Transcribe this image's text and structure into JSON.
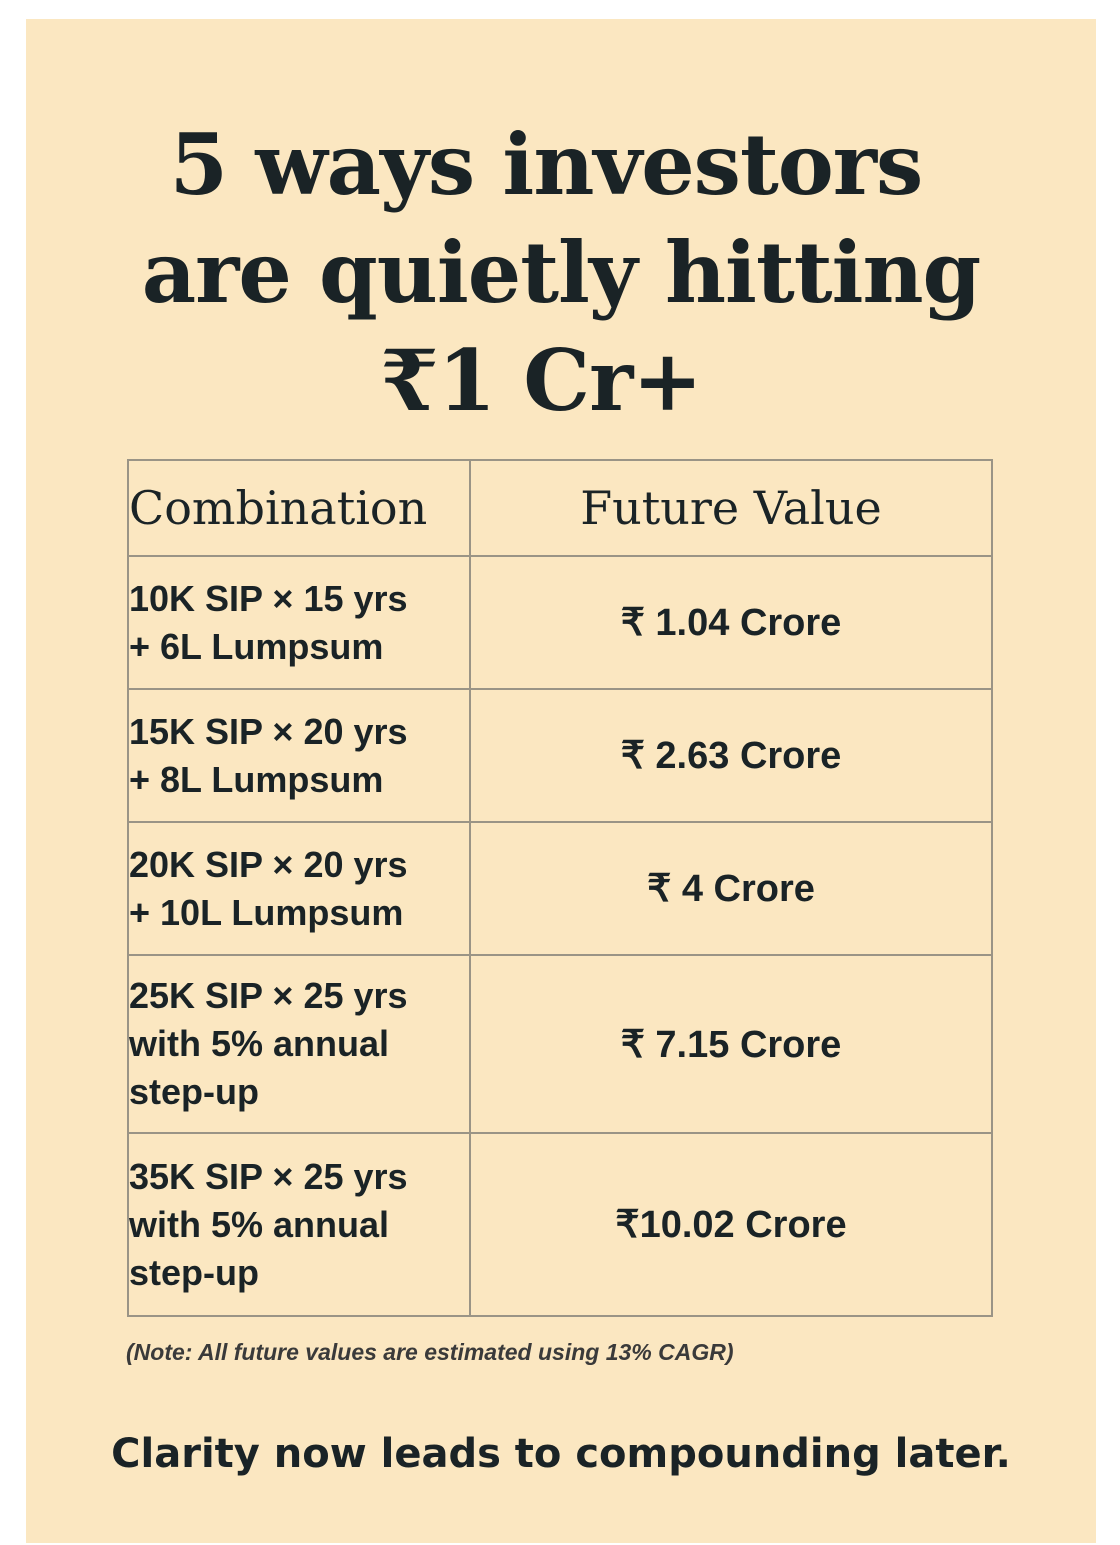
{
  "title": {
    "line1": "5 ways investors",
    "line2": "are quietly hitting",
    "line3": "₹1 Cr+"
  },
  "table": {
    "headers": [
      "Combination",
      "Future Value"
    ],
    "rows": [
      {
        "combination": [
          "10K SIP × 15 yrs",
          "+ 6L Lumpsum"
        ],
        "future_value": "₹ 1.04 Crore"
      },
      {
        "combination": [
          "15K SIP × 20 yrs",
          "+ 8L Lumpsum"
        ],
        "future_value": "₹ 2.63 Crore"
      },
      {
        "combination": [
          "20K SIP × 20 yrs",
          "+ 10L Lumpsum"
        ],
        "future_value": "₹ 4 Crore"
      },
      {
        "combination": [
          "25K SIP × 25 yrs",
          "with 5% annual",
          "step-up"
        ],
        "future_value": "₹ 7.15 Crore"
      },
      {
        "combination": [
          "35K SIP × 25 yrs",
          "with 5% annual",
          "step-up"
        ],
        "future_value": "₹10.02 Crore"
      }
    ]
  },
  "note": "(Note: All future values are estimated using 13% CAGR)",
  "tagline": "Clarity now leads to compounding later.",
  "colors": {
    "background": "#fbe7c1",
    "text": "#1a2326",
    "border": "#9a9486"
  }
}
